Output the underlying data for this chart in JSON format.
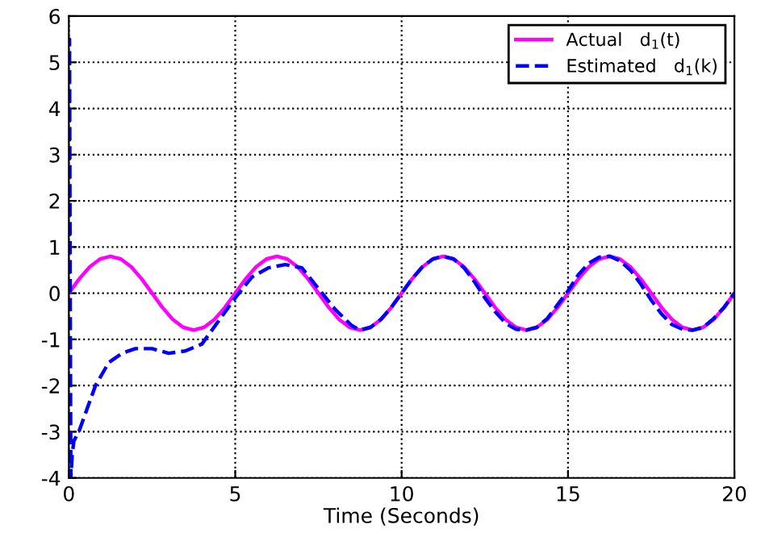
{
  "chart_data": {
    "type": "line",
    "xlabel": "Time (Seconds)",
    "xlim": [
      0,
      20
    ],
    "ylim": [
      -4,
      6
    ],
    "xticks": [
      0,
      5,
      10,
      15,
      20
    ],
    "yticks": [
      -4,
      -3,
      -2,
      -1,
      0,
      1,
      2,
      3,
      4,
      5,
      6
    ],
    "grid": true,
    "legend": "top right",
    "marker": "none",
    "series": [
      {
        "name": "Actual   d$_{1}$(t)",
        "color": "#ff00ff",
        "line_style": "solid",
        "x": [
          0,
          0.3125,
          0.625,
          0.9375,
          1.25,
          1.5625,
          1.875,
          2.1875,
          2.5,
          2.8125,
          3.125,
          3.4375,
          3.75,
          4.0625,
          4.375,
          4.6875,
          5,
          5.3125,
          5.625,
          5.9375,
          6.25,
          6.5625,
          6.875,
          7.1875,
          7.5,
          7.8125,
          8.125,
          8.4375,
          8.75,
          9.0625,
          9.375,
          9.6875,
          10,
          10.3125,
          10.625,
          10.9375,
          11.25,
          11.5625,
          11.875,
          12.1875,
          12.5,
          12.8125,
          13.125,
          13.4375,
          13.75,
          14.0625,
          14.375,
          14.6875,
          15,
          15.3125,
          15.625,
          15.9375,
          16.25,
          16.5625,
          16.875,
          17.1875,
          17.5,
          17.8125,
          18.125,
          18.4375,
          18.75,
          19.0625,
          19.375,
          19.6875,
          20
        ],
        "values": [
          0,
          0.31,
          0.57,
          0.74,
          0.8,
          0.74,
          0.57,
          0.31,
          0,
          -0.31,
          -0.57,
          -0.74,
          -0.8,
          -0.74,
          -0.57,
          -0.31,
          0,
          0.31,
          0.57,
          0.74,
          0.8,
          0.74,
          0.57,
          0.31,
          0,
          -0.31,
          -0.57,
          -0.74,
          -0.8,
          -0.74,
          -0.57,
          -0.31,
          0,
          0.31,
          0.57,
          0.74,
          0.8,
          0.74,
          0.57,
          0.31,
          0,
          -0.31,
          -0.57,
          -0.74,
          -0.8,
          -0.74,
          -0.57,
          -0.31,
          0,
          0.31,
          0.57,
          0.74,
          0.8,
          0.74,
          0.57,
          0.31,
          0,
          -0.31,
          -0.57,
          -0.74,
          -0.8,
          -0.74,
          -0.57,
          -0.31,
          0
        ]
      },
      {
        "name": "Estimated   d$_{1}$(k)",
        "color": "#0000ff",
        "line_style": "dashed",
        "x": [
          0,
          0.02,
          0.04,
          0.06,
          0.1,
          0.15,
          0.3,
          0.5,
          0.8,
          1.2,
          1.6,
          2,
          2.5,
          3,
          3.5,
          4,
          4.5,
          5,
          5.5,
          6,
          6.5,
          7,
          7.5,
          8,
          8.5,
          8.75,
          9.0625,
          9.375,
          9.6875,
          10,
          10.3125,
          10.625,
          10.9375,
          11.25,
          11.5625,
          11.875,
          12.1875,
          12.5,
          12.8125,
          13.125,
          13.4375,
          13.75,
          14.0625,
          14.375,
          14.6875,
          15,
          15.3125,
          15.625,
          15.9375,
          16.25,
          16.5625,
          16.875,
          17.1875,
          17.5,
          17.8125,
          18.125,
          18.4375,
          18.75,
          19.0625,
          19.375,
          19.6875,
          20
        ],
        "values": [
          0,
          5.5,
          0,
          -4,
          -3.5,
          -3.2,
          -3,
          -2.6,
          -2,
          -1.5,
          -1.3,
          -1.2,
          -1.2,
          -1.3,
          -1.25,
          -1.1,
          -0.6,
          -0.1,
          0.35,
          0.55,
          0.62,
          0.55,
          0.1,
          -0.35,
          -0.7,
          -0.8,
          -0.74,
          -0.57,
          -0.31,
          0,
          0.31,
          0.57,
          0.74,
          0.8,
          0.74,
          0.55,
          0.25,
          -0.1,
          -0.4,
          -0.65,
          -0.78,
          -0.8,
          -0.74,
          -0.55,
          -0.25,
          0.05,
          0.4,
          0.65,
          0.78,
          0.8,
          0.7,
          0.5,
          0.2,
          -0.15,
          -0.45,
          -0.68,
          -0.78,
          -0.8,
          -0.74,
          -0.55,
          -0.31,
          0
        ]
      }
    ]
  }
}
